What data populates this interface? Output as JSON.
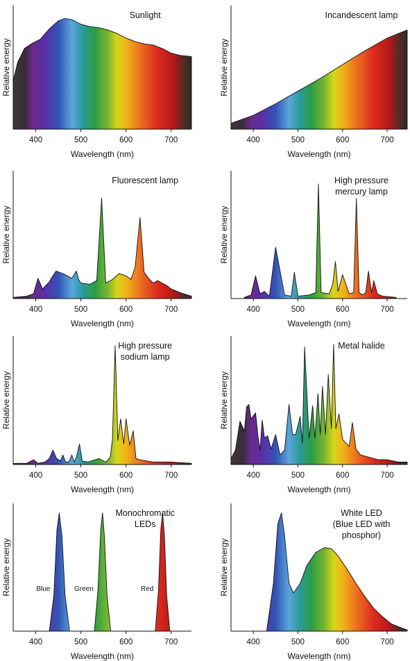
{
  "figure": {
    "y_axis_label": "Relative energy",
    "x_axis_label": "Wavelength (nm)"
  },
  "chart_data": [
    {
      "type": "area",
      "title": "Sunlight",
      "title_lines": [
        "Sunlight"
      ],
      "xlabel": "Wavelength (nm)",
      "ylabel": "Relative energy",
      "xlim": [
        350,
        745
      ],
      "ylim": [
        0,
        1
      ],
      "x_ticks": [
        400,
        500,
        600,
        700
      ],
      "grid": false,
      "fill": "visible spectrum",
      "series": [
        {
          "x": [
            350,
            360,
            375,
            390,
            410,
            430,
            450,
            465,
            480,
            500,
            520,
            540,
            560,
            580,
            600,
            620,
            640,
            660,
            680,
            700,
            720,
            745
          ],
          "y": [
            0.42,
            0.58,
            0.7,
            0.74,
            0.78,
            0.87,
            0.94,
            0.96,
            0.95,
            0.91,
            0.89,
            0.88,
            0.86,
            0.83,
            0.79,
            0.76,
            0.74,
            0.73,
            0.7,
            0.66,
            0.64,
            0.63
          ]
        }
      ]
    },
    {
      "type": "area",
      "title": "Incandescent lamp",
      "title_lines": [
        "Incandescent lamp"
      ],
      "xlabel": "Wavelength (nm)",
      "ylabel": "Relative energy",
      "xlim": [
        350,
        745
      ],
      "ylim": [
        0,
        1
      ],
      "x_ticks": [
        400,
        500,
        600,
        700
      ],
      "grid": false,
      "fill": "visible spectrum",
      "series": [
        {
          "x": [
            350,
            400,
            450,
            500,
            550,
            600,
            650,
            700,
            745
          ],
          "y": [
            0.05,
            0.12,
            0.22,
            0.33,
            0.44,
            0.56,
            0.68,
            0.79,
            0.86
          ]
        }
      ]
    },
    {
      "type": "area",
      "title": "Fluorescent lamp",
      "title_lines": [
        "Fluorescent lamp"
      ],
      "xlabel": "Wavelength (nm)",
      "ylabel": "Relative energy",
      "xlim": [
        350,
        745
      ],
      "ylim": [
        0,
        1
      ],
      "x_ticks": [
        400,
        500,
        600,
        700
      ],
      "grid": false,
      "fill": "visible spectrum",
      "series": [
        {
          "x": [
            350,
            380,
            395,
            405,
            415,
            430,
            436,
            445,
            460,
            480,
            490,
            495,
            500,
            520,
            535,
            546,
            555,
            570,
            585,
            600,
            611,
            620,
            631,
            640,
            650,
            660,
            670,
            690,
            700,
            720,
            745
          ],
          "y": [
            0.01,
            0.02,
            0.04,
            0.17,
            0.08,
            0.14,
            0.18,
            0.23,
            0.21,
            0.17,
            0.23,
            0.16,
            0.13,
            0.12,
            0.15,
            0.84,
            0.13,
            0.16,
            0.21,
            0.19,
            0.16,
            0.26,
            0.68,
            0.22,
            0.17,
            0.13,
            0.15,
            0.11,
            0.08,
            0.05,
            0.02
          ]
        }
      ]
    },
    {
      "type": "area",
      "title": "High pressure mercury lamp",
      "title_lines": [
        "High pressure",
        "mercury lamp"
      ],
      "xlabel": "Wavelength (nm)",
      "ylabel": "Relative energy",
      "xlim": [
        350,
        745
      ],
      "ylim": [
        0,
        1
      ],
      "x_ticks": [
        400,
        500,
        600,
        700
      ],
      "grid": false,
      "fill": "visible spectrum",
      "series": [
        {
          "x": [
            380,
            395,
            405,
            415,
            425,
            436,
            450,
            470,
            485,
            492,
            500,
            525,
            540,
            546,
            552,
            570,
            578,
            584,
            590,
            600,
            615,
            625,
            631,
            637,
            645,
            652,
            658,
            665,
            670,
            678,
            690,
            720
          ],
          "y": [
            0.01,
            0.03,
            0.19,
            0.04,
            0.06,
            0.02,
            0.43,
            0.03,
            0.02,
            0.22,
            0.02,
            0.03,
            0.05,
            0.96,
            0.05,
            0.04,
            0.12,
            0.31,
            0.06,
            0.2,
            0.04,
            0.05,
            0.84,
            0.05,
            0.03,
            0.05,
            0.23,
            0.05,
            0.15,
            0.04,
            0.02,
            0.01
          ]
        }
      ]
    },
    {
      "type": "area",
      "title": "High pressure sodium lamp",
      "title_lines": [
        "High pressure",
        "sodium lamp"
      ],
      "xlabel": "Wavelength (nm)",
      "ylabel": "Relative energy",
      "xlim": [
        350,
        745
      ],
      "ylim": [
        0,
        1
      ],
      "x_ticks": [
        400,
        500,
        600,
        700
      ],
      "grid": false,
      "fill": "visible spectrum",
      "series": [
        {
          "x": [
            350,
            380,
            395,
            405,
            420,
            430,
            438,
            446,
            455,
            460,
            466,
            473,
            480,
            485,
            490,
            497,
            503,
            515,
            540,
            555,
            565,
            570,
            576,
            582,
            588,
            595,
            600,
            608,
            616,
            622,
            630,
            660,
            700,
            745
          ],
          "y": [
            0.01,
            0.01,
            0.04,
            0.01,
            0.02,
            0.05,
            0.12,
            0.05,
            0.03,
            0.08,
            0.02,
            0.02,
            0.08,
            0.02,
            0.06,
            0.17,
            0.03,
            0.02,
            0.05,
            0.02,
            0.06,
            0.21,
            0.99,
            0.2,
            0.38,
            0.17,
            0.38,
            0.16,
            0.28,
            0.05,
            0.04,
            0.02,
            0.02,
            0.01
          ]
        }
      ]
    },
    {
      "type": "area",
      "title": "Metal halide",
      "title_lines": [
        "Metal halide"
      ],
      "xlabel": "Wavelength (nm)",
      "ylabel": "Relative energy",
      "xlim": [
        350,
        745
      ],
      "ylim": [
        0,
        1
      ],
      "x_ticks": [
        400,
        500,
        600,
        700
      ],
      "grid": false,
      "fill": "visible spectrum",
      "series": [
        {
          "x": [
            350,
            360,
            370,
            380,
            385,
            390,
            395,
            405,
            410,
            415,
            420,
            425,
            432,
            440,
            450,
            460,
            470,
            480,
            488,
            495,
            505,
            510,
            515,
            525,
            533,
            538,
            545,
            550,
            555,
            562,
            568,
            575,
            580,
            585,
            592,
            600,
            615,
            622,
            630,
            640,
            660,
            680,
            700,
            725,
            745
          ],
          "y": [
            0.05,
            0.12,
            0.36,
            0.28,
            0.48,
            0.5,
            0.38,
            0.43,
            0.25,
            0.12,
            0.37,
            0.22,
            0.24,
            0.13,
            0.25,
            0.08,
            0.12,
            0.5,
            0.25,
            0.25,
            0.4,
            0.18,
            0.98,
            0.22,
            0.49,
            0.22,
            0.59,
            0.25,
            0.65,
            0.25,
            0.75,
            0.3,
            1.0,
            0.3,
            0.42,
            0.21,
            0.15,
            0.35,
            0.13,
            0.08,
            0.06,
            0.04,
            0.04,
            0.02,
            0.02
          ]
        }
      ]
    },
    {
      "type": "area",
      "title": "Monochromatic LEDs",
      "title_lines": [
        "Monochromatic",
        "LEDs"
      ],
      "xlabel": "Wavelength (nm)",
      "ylabel": "Relative energy",
      "xlim": [
        350,
        745
      ],
      "ylim": [
        0,
        1
      ],
      "x_ticks": [
        400,
        500,
        600,
        700
      ],
      "grid": false,
      "fill": "visible spectrum",
      "series": [
        {
          "name": "Blue",
          "x": [
            430,
            440,
            447,
            452,
            458,
            465,
            475
          ],
          "y": [
            0,
            0.3,
            0.85,
            0.99,
            0.8,
            0.3,
            0
          ]
        },
        {
          "name": "Green",
          "x": [
            530,
            538,
            544,
            548,
            552,
            558,
            566
          ],
          "y": [
            0,
            0.35,
            0.85,
            0.99,
            0.8,
            0.3,
            0
          ]
        },
        {
          "name": "Red",
          "x": [
            665,
            672,
            677,
            681,
            685,
            690,
            697
          ],
          "y": [
            0,
            0.35,
            0.85,
            0.99,
            0.8,
            0.3,
            0
          ]
        }
      ],
      "annotations": [
        "Blue",
        "Green",
        "Red"
      ]
    },
    {
      "type": "area",
      "title": "White LED (Blue LED with phosphor)",
      "title_lines": [
        "White LED",
        "(Blue LED with",
        "phosphor)"
      ],
      "xlabel": "Wavelength (nm)",
      "ylabel": "Relative energy",
      "xlim": [
        350,
        745
      ],
      "ylim": [
        0,
        1
      ],
      "x_ticks": [
        400,
        500,
        600,
        700
      ],
      "grid": false,
      "fill": "visible spectrum",
      "series": [
        {
          "x": [
            430,
            445,
            455,
            463,
            470,
            480,
            490,
            505,
            520,
            540,
            560,
            575,
            590,
            610,
            630,
            650,
            670,
            690,
            710,
            730,
            745
          ],
          "y": [
            0.0,
            0.4,
            0.9,
            0.99,
            0.8,
            0.4,
            0.32,
            0.4,
            0.55,
            0.66,
            0.7,
            0.69,
            0.63,
            0.52,
            0.4,
            0.29,
            0.19,
            0.12,
            0.06,
            0.03,
            0.01
          ]
        }
      ]
    }
  ]
}
